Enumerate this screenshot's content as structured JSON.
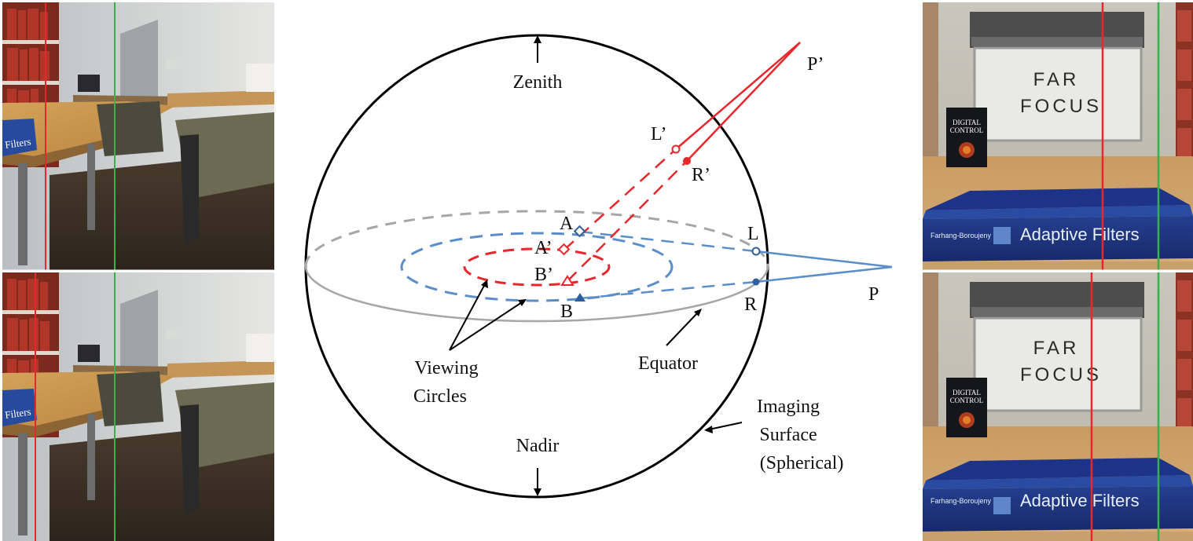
{
  "diagram": {
    "labels": {
      "zenith": "Zenith",
      "nadir": "Nadir",
      "equator": "Equator",
      "viewing_circles_line1": "Viewing",
      "viewing_circles_line2": "Circles",
      "imaging_line1": "Imaging",
      "imaging_line2": "Surface",
      "imaging_line3": "(Spherical)",
      "point_a": "A",
      "point_a_prime": "A’",
      "point_b": "B",
      "point_b_prime": "B’",
      "point_l": "L",
      "point_l_prime": "L’",
      "point_r": "R",
      "point_r_prime": "R’",
      "point_p": "P",
      "point_p_prime": "P’"
    },
    "colors": {
      "outer_sphere": "#000000",
      "equator": "#a6a6a6",
      "viewing_circle_outer": "#5b8ec9",
      "viewing_circle_inner": "#e8262b",
      "ray_p": "#5b8ec9",
      "ray_p_prime": "#e8262b"
    }
  },
  "photos": {
    "left_panels": [
      "office-scene-top",
      "office-scene-bottom"
    ],
    "right_panels": [
      "bookshelf-scene-top",
      "bookshelf-scene-bottom"
    ],
    "sign_line1": "FAR",
    "sign_line2": "FOCUS",
    "book_cover_line1": "DIGITAL",
    "book_cover_line2": "CONTROL",
    "book_spine_title": "Adaptive Filters",
    "book_spine_author": "Farhang-Boroujeny",
    "guide_colors": {
      "red": "#e8262b",
      "green": "#35b24a"
    }
  }
}
